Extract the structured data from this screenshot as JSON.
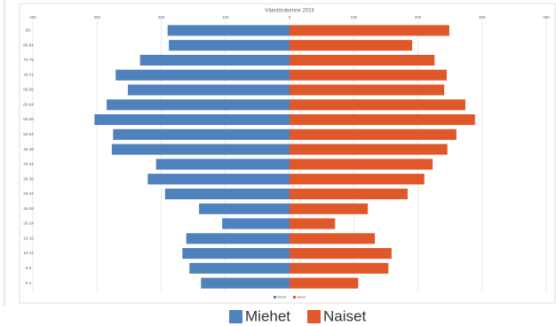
{
  "chart_data": {
    "type": "bar",
    "orientation": "horizontal",
    "title": "Väestörakenne 2024",
    "categories": [
      "85-",
      "80-84",
      "75-79",
      "70-74",
      "65-69",
      "60-64",
      "55-59",
      "50-54",
      "45-49",
      "40-44",
      "35-39",
      "30-34",
      "25-29",
      "20-24",
      "15-19",
      "10-14",
      "5-9",
      "0-4"
    ],
    "series": [
      {
        "name": "Miehet",
        "color": "#4f81bd",
        "values": [
          -190,
          -188,
          -233,
          -271,
          -252,
          -285,
          -304,
          -275,
          -277,
          -208,
          -221,
          -194,
          -141,
          -105,
          -161,
          -167,
          -156,
          -138
        ]
      },
      {
        "name": "Naiset",
        "color": "#e0582a",
        "values": [
          249,
          191,
          226,
          245,
          241,
          274,
          289,
          260,
          246,
          223,
          210,
          184,
          122,
          71,
          133,
          159,
          154,
          107
        ]
      }
    ],
    "xlim": [
      -400,
      400
    ],
    "xticks": [
      {
        "value": -400,
        "label": "400"
      },
      {
        "value": -300,
        "label": "300"
      },
      {
        "value": -200,
        "label": "200"
      },
      {
        "value": -100,
        "label": "100"
      },
      0,
      100,
      200,
      300,
      400
    ],
    "grid": true,
    "legend": "bottom"
  }
}
